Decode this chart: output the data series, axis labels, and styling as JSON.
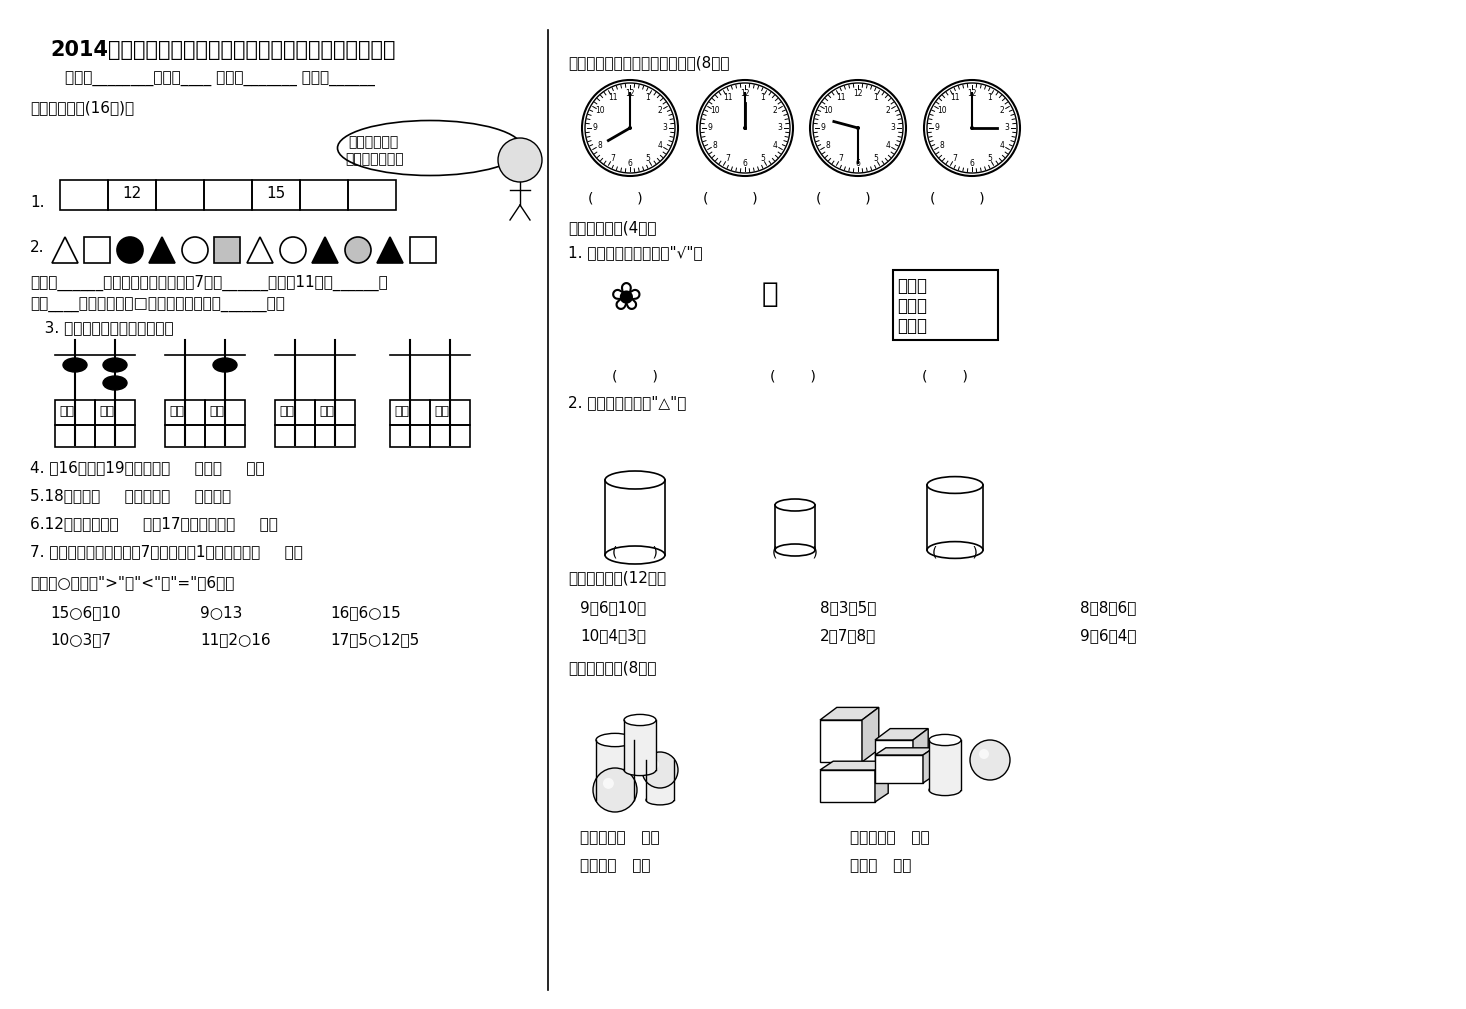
{
  "title": "2014最新人教版小学一年级数学上册第一学期期末检测题",
  "subtitle": "学校：________班别：____ 姓名；_______ 评分：______",
  "bg_color": "#ffffff",
  "text_color": "#000000",
  "font_size_title": 15,
  "font_size_body": 11,
  "section1_title": "一、填一填。(16分)。",
  "section2_title": "二、在○里填上\">\"、\"<\"或\"=\"（6分）",
  "section3_title": "三、写出下面各钟面上的时间。(8分）",
  "section4_title": "四、选一选。(4分）",
  "section5_title": "五、算一算。(12分）",
  "section6_title": "六、认一认。(8分）",
  "q1_label": "1.",
  "q2_label": "2.",
  "q3_label": "3. 看珠子填数，看数画珠子。",
  "q4_text": "4. 比16大、比19小的数是（     ）和（     ）。",
  "q5_text": "5.18里面有（     ）个十，（     ）个一。",
  "q6_text": "6.12前面的数是（     ），17后面的数是（     ）。",
  "q7_text": "7. 一个两位数，个位上是7，十位上是1，这个数是（     ）。",
  "ellipse_text1": "认真动脑筋，",
  "ellipse_text2": "你会做得更好！",
  "q2_row2_left": "是第____个；第二个是□；圆形比正方形多______个。",
  "s4_q1": "1. 在数量最多的下面画\"√\"。",
  "s4_q2": "2. 在最短的下面画\"△\"。",
  "s5_equations": [
    "9＋6－10＝",
    "8＋3＋5＝",
    "8＋8－6＝",
    "10－4－3＝",
    "2＋7＋8＝",
    "9－6＋4＝"
  ],
  "s6_text1": "正方体有（   ）个",
  "s6_text2": "长方体有（   ）个",
  "s6_text3": "圆柱有（   ）个",
  "s6_text4": "球有（   ）个",
  "compare_row1": [
    "15○6＋10",
    "9○13",
    "16－6○15"
  ],
  "compare_row2": [
    "10○3＋7",
    "11＋2○16",
    "17－5○12＋5"
  ]
}
